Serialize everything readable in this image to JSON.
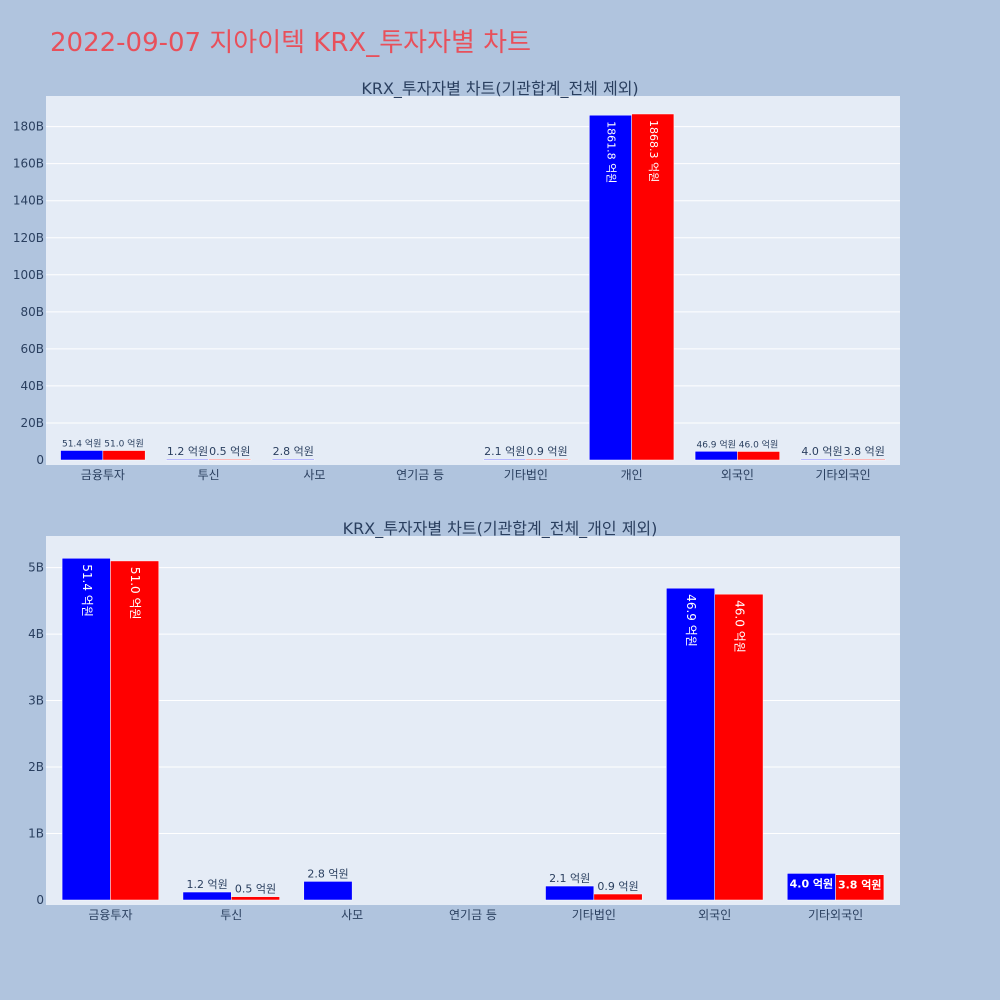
{
  "page": {
    "title": "2022-09-07 지아이텍 KRX_투자자별 차트",
    "background": "#b0c4de",
    "title_color": "#e8505b",
    "plot_background": "#e5ecf6"
  },
  "chart_data": [
    {
      "type": "bar",
      "title": "KRX_투자자별 차트(기관합계_전체 제외)",
      "categories": [
        "금융투자",
        "투신",
        "사모",
        "연기금 등",
        "기타법인",
        "개인",
        "외국인",
        "기타외국인"
      ],
      "series": [
        {
          "color": "#0000ff",
          "values": [
            5.14,
            0.12,
            0.28,
            0,
            0.21,
            186.18,
            4.69,
            0.4
          ],
          "labels": [
            "51.4 억원",
            "1.2 억원",
            "2.8 억원",
            "",
            "2.1 억원",
            "1861.8 억원",
            "46.9 억원",
            "4.0 억원"
          ]
        },
        {
          "color": "#ff0000",
          "values": [
            5.1,
            0.05,
            0,
            0,
            0.09,
            186.83,
            4.6,
            0.38
          ],
          "labels": [
            "51.0 억원",
            "0.5 억원",
            "",
            "",
            "0.9 억원",
            "1868.3 억원",
            "46.0 억원",
            "3.8 억원"
          ]
        }
      ],
      "yticks": [
        "0",
        "20B",
        "40B",
        "60B",
        "80B",
        "100B",
        "120B",
        "140B",
        "160B",
        "180B"
      ],
      "ytick_values": [
        0,
        20,
        40,
        60,
        80,
        100,
        120,
        140,
        160,
        180
      ],
      "ylim": [
        0,
        196
      ],
      "grid": true,
      "inside_label_indices": [
        5
      ]
    },
    {
      "type": "bar",
      "title": "KRX_투자자별 차트(기관합계_전체_개인 제외)",
      "categories": [
        "금융투자",
        "투신",
        "사모",
        "연기금 등",
        "기타법인",
        "외국인",
        "기타외국인"
      ],
      "series": [
        {
          "color": "#0000ff",
          "values": [
            5.14,
            0.12,
            0.28,
            0,
            0.21,
            4.69,
            0.4
          ],
          "labels": [
            "51.4 억원",
            "1.2 억원",
            "2.8 억원",
            "",
            "2.1 억원",
            "46.9 억원",
            "4.0 억원"
          ]
        },
        {
          "color": "#ff0000",
          "values": [
            5.1,
            0.05,
            0,
            0,
            0.09,
            4.6,
            0.38
          ],
          "labels": [
            "51.0 억원",
            "0.5 억원",
            "",
            "",
            "0.9 억원",
            "46.0 억원",
            "3.8 억원"
          ]
        }
      ],
      "yticks": [
        "0",
        "1B",
        "2B",
        "3B",
        "4B",
        "5B"
      ],
      "ytick_values": [
        0,
        1,
        2,
        3,
        4,
        5
      ],
      "ylim": [
        0,
        5.46
      ],
      "grid": true,
      "inside_label_indices": [
        0,
        5,
        6
      ]
    }
  ]
}
